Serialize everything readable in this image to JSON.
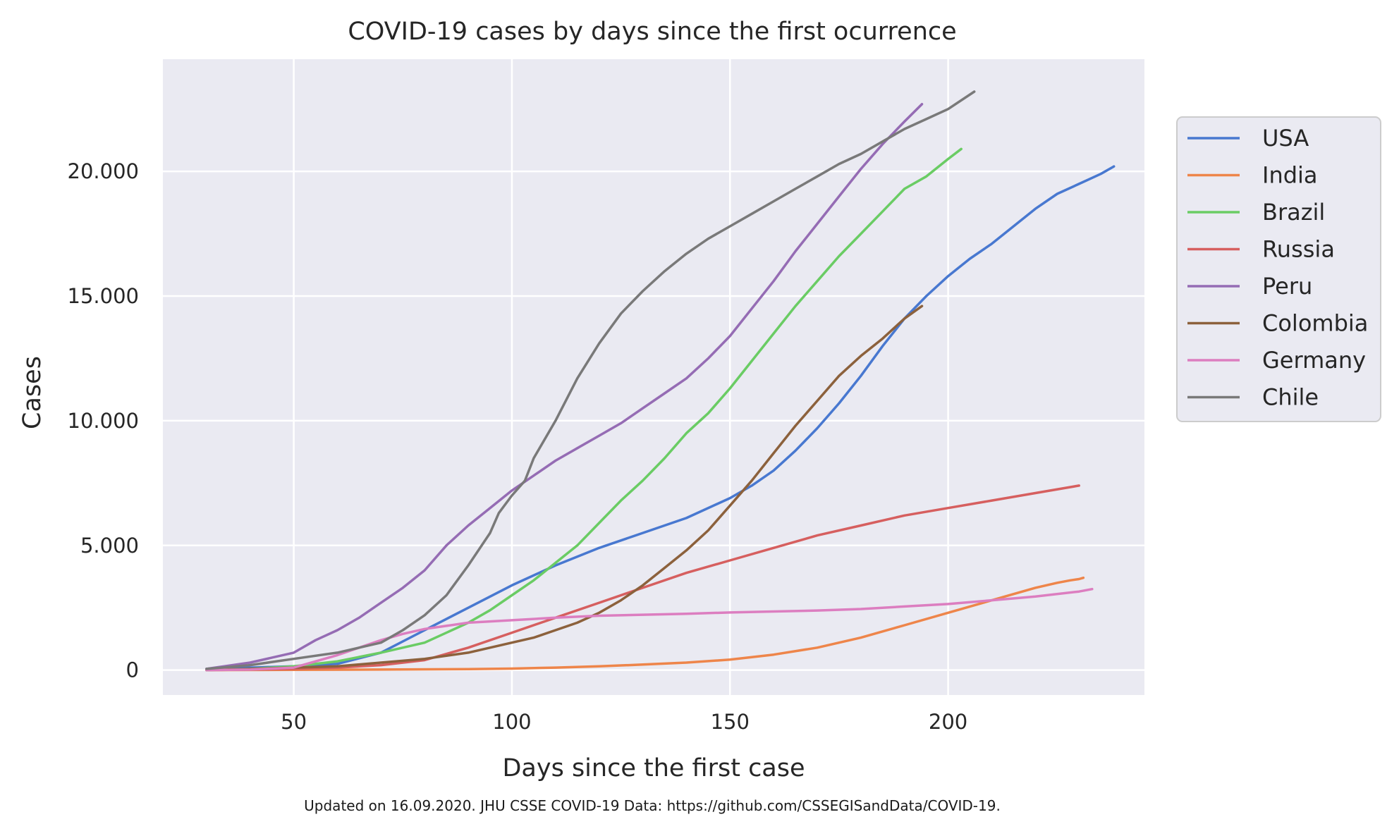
{
  "chart_data": {
    "type": "line",
    "title": "COVID-19 cases by days since the first ocurrence",
    "xlabel": "Days since the first case",
    "ylabel": "Cases",
    "footnote": "Updated on 16.09.2020. JHU CSSE COVID-19 Data: https://github.com/CSSEGISandData/COVID-19.",
    "xlim": [
      20,
      245
    ],
    "ylim": [
      -1000,
      24500
    ],
    "xticks": [
      {
        "value": 50,
        "label": "50"
      },
      {
        "value": 100,
        "label": "100"
      },
      {
        "value": 150,
        "label": "150"
      },
      {
        "value": 200,
        "label": "200"
      }
    ],
    "yticks": [
      {
        "value": 0,
        "label": "0"
      },
      {
        "value": 5000,
        "label": "5.000"
      },
      {
        "value": 10000,
        "label": "10.000"
      },
      {
        "value": 15000,
        "label": "15.000"
      },
      {
        "value": 20000,
        "label": "20.000"
      }
    ],
    "grid": true,
    "legend_position": "right",
    "series": [
      {
        "name": "USA",
        "color": "#4878d0",
        "x": [
          30,
          40,
          50,
          60,
          70,
          80,
          90,
          100,
          110,
          120,
          130,
          140,
          150,
          155,
          160,
          165,
          170,
          175,
          180,
          185,
          190,
          195,
          200,
          205,
          210,
          215,
          220,
          225,
          230,
          235,
          238
        ],
        "y": [
          50,
          100,
          150,
          250,
          700,
          1600,
          2500,
          3400,
          4200,
          4900,
          5500,
          6100,
          6900,
          7400,
          8000,
          8800,
          9700,
          10700,
          11800,
          13000,
          14100,
          15000,
          15800,
          16500,
          17100,
          17800,
          18500,
          19100,
          19500,
          19900,
          20200
        ]
      },
      {
        "name": "India",
        "color": "#ee854a",
        "x": [
          30,
          50,
          70,
          90,
          100,
          110,
          120,
          130,
          140,
          150,
          160,
          170,
          180,
          190,
          200,
          210,
          220,
          225,
          228,
          230,
          231
        ],
        "y": [
          0,
          10,
          20,
          40,
          60,
          100,
          150,
          220,
          300,
          420,
          620,
          900,
          1300,
          1800,
          2300,
          2800,
          3300,
          3500,
          3600,
          3650,
          3700
        ]
      },
      {
        "name": "Brazil",
        "color": "#6acc64",
        "x": [
          30,
          40,
          50,
          60,
          70,
          80,
          90,
          95,
          100,
          105,
          110,
          115,
          120,
          125,
          130,
          135,
          140,
          145,
          150,
          155,
          160,
          165,
          170,
          175,
          180,
          185,
          190,
          195,
          200,
          203
        ],
        "y": [
          0,
          50,
          150,
          350,
          700,
          1100,
          1900,
          2400,
          3000,
          3600,
          4300,
          5000,
          5900,
          6800,
          7600,
          8500,
          9500,
          10300,
          11300,
          12400,
          13500,
          14600,
          15600,
          16600,
          17500,
          18400,
          19300,
          19800,
          20500,
          20900
        ]
      },
      {
        "name": "Russia",
        "color": "#d65f5f",
        "x": [
          30,
          40,
          50,
          60,
          70,
          80,
          90,
          100,
          110,
          120,
          130,
          140,
          150,
          160,
          170,
          180,
          190,
          200,
          210,
          220,
          230
        ],
        "y": [
          0,
          20,
          50,
          100,
          200,
          400,
          900,
          1500,
          2100,
          2700,
          3300,
          3900,
          4400,
          4900,
          5400,
          5800,
          6200,
          6500,
          6800,
          7100,
          7400
        ]
      },
      {
        "name": "Peru",
        "color": "#956cb4",
        "x": [
          30,
          40,
          50,
          55,
          60,
          65,
          70,
          75,
          80,
          85,
          90,
          95,
          100,
          105,
          110,
          115,
          120,
          125,
          130,
          135,
          140,
          145,
          150,
          155,
          160,
          165,
          170,
          175,
          180,
          185,
          190,
          194
        ],
        "y": [
          50,
          300,
          700,
          1200,
          1600,
          2100,
          2700,
          3300,
          4000,
          5000,
          5800,
          6500,
          7200,
          7800,
          8400,
          8900,
          9400,
          9900,
          10500,
          11100,
          11700,
          12500,
          13400,
          14500,
          15600,
          16800,
          17900,
          19000,
          20100,
          21100,
          22000,
          22700
        ]
      },
      {
        "name": "Colombia",
        "color": "#8c613c",
        "x": [
          30,
          40,
          50,
          60,
          70,
          80,
          90,
          100,
          105,
          110,
          115,
          120,
          125,
          130,
          135,
          140,
          145,
          150,
          155,
          160,
          165,
          170,
          175,
          180,
          185,
          190,
          194
        ],
        "y": [
          0,
          50,
          100,
          150,
          300,
          450,
          700,
          1100,
          1300,
          1600,
          1900,
          2300,
          2800,
          3400,
          4100,
          4800,
          5600,
          6600,
          7600,
          8700,
          9800,
          10800,
          11800,
          12600,
          13300,
          14100,
          14600
        ]
      },
      {
        "name": "Germany",
        "color": "#dc7ec0",
        "x": [
          30,
          40,
          50,
          60,
          65,
          70,
          75,
          80,
          90,
          100,
          110,
          120,
          130,
          140,
          150,
          160,
          170,
          180,
          190,
          200,
          210,
          220,
          230,
          233
        ],
        "y": [
          0,
          20,
          100,
          600,
          900,
          1200,
          1450,
          1650,
          1900,
          2000,
          2100,
          2180,
          2220,
          2260,
          2310,
          2350,
          2390,
          2450,
          2550,
          2650,
          2800,
          2950,
          3150,
          3250
        ]
      },
      {
        "name": "Chile",
        "color": "#797979",
        "x": [
          30,
          40,
          50,
          60,
          70,
          75,
          80,
          85,
          90,
          95,
          97,
          100,
          103,
          105,
          110,
          115,
          120,
          125,
          130,
          135,
          140,
          145,
          150,
          155,
          160,
          165,
          170,
          175,
          180,
          185,
          190,
          195,
          200,
          206
        ],
        "y": [
          50,
          200,
          450,
          700,
          1100,
          1600,
          2200,
          3000,
          4200,
          5500,
          6300,
          7000,
          7600,
          8500,
          10000,
          11700,
          13100,
          14300,
          15200,
          16000,
          16700,
          17300,
          17800,
          18300,
          18800,
          19300,
          19800,
          20300,
          20700,
          21200,
          21700,
          22100,
          22500,
          23200
        ]
      }
    ]
  }
}
